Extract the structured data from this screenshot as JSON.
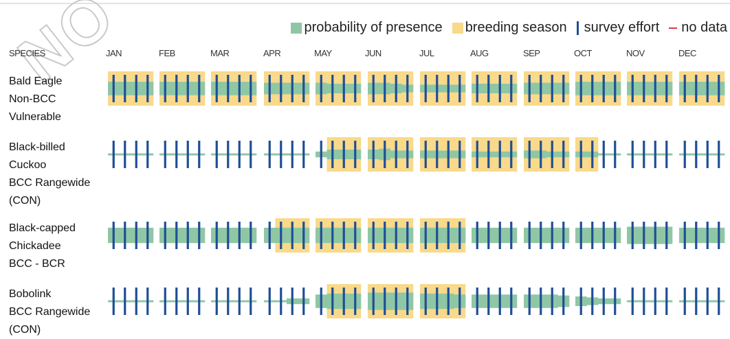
{
  "watermark_text": "NO",
  "legend": {
    "probability_label": "probability of presence",
    "breeding_label": "breeding season",
    "effort_label": "survey effort",
    "nodata_label": "no data"
  },
  "colors": {
    "probability": "#8fc7a4",
    "breeding": "#f9d98a",
    "effort": "#1f4e96",
    "nodata": "#d9384a",
    "baseline": "#8fc7a4"
  },
  "chart_data": {
    "type": "heatmap",
    "species_header": "SPECIES",
    "months": [
      "JAN",
      "FEB",
      "MAR",
      "APR",
      "MAY",
      "JUN",
      "JUL",
      "AUG",
      "SEP",
      "OCT",
      "NOV",
      "DEC"
    ],
    "weeks_per_month": 4,
    "species": [
      {
        "name_lines": [
          "Bald Eagle",
          "Non-BCC",
          "Vulnerable"
        ],
        "breeding": [
          1,
          1,
          1,
          1,
          1,
          1,
          1,
          1,
          1,
          1,
          1,
          1,
          1,
          1,
          1,
          1,
          1,
          1,
          1,
          1,
          1,
          1,
          1,
          1,
          1,
          1,
          1,
          1,
          1,
          1,
          1,
          1,
          1,
          1,
          1,
          1,
          1,
          1,
          1,
          1,
          1,
          1,
          1,
          1,
          1,
          1,
          1,
          1
        ],
        "probability": [
          0.7,
          0.7,
          0.7,
          0.7,
          0.7,
          0.7,
          0.7,
          0.7,
          0.7,
          0.7,
          0.7,
          0.7,
          0.6,
          0.6,
          0.6,
          0.6,
          0.6,
          0.5,
          0.5,
          0.5,
          0.6,
          0.6,
          0.5,
          0.4,
          0.4,
          0.4,
          0.4,
          0.4,
          0.5,
          0.5,
          0.5,
          0.5,
          0.6,
          0.6,
          0.6,
          0.6,
          0.7,
          0.7,
          0.7,
          0.7,
          0.7,
          0.7,
          0.7,
          0.7,
          0.7,
          0.7,
          0.7,
          0.7
        ],
        "effort": [
          1,
          1,
          1,
          1,
          1,
          1,
          1,
          1,
          1,
          1,
          1,
          1,
          1,
          1,
          1,
          1,
          1,
          1,
          1,
          1,
          1,
          1,
          1,
          1,
          1,
          1,
          1,
          1,
          1,
          1,
          1,
          1,
          1,
          1,
          1,
          1,
          1,
          1,
          1,
          1,
          1,
          1,
          1,
          1,
          1,
          1,
          1,
          1
        ]
      },
      {
        "name_lines": [
          "Black-billed",
          "Cuckoo",
          "BCC Rangewide",
          "(CON)"
        ],
        "breeding": [
          0,
          0,
          0,
          0,
          0,
          0,
          0,
          0,
          0,
          0,
          0,
          0,
          0,
          0,
          0,
          0,
          0,
          1,
          1,
          1,
          1,
          1,
          1,
          1,
          1,
          1,
          1,
          1,
          1,
          1,
          1,
          1,
          1,
          1,
          1,
          1,
          1,
          1,
          0,
          0,
          0,
          0,
          0,
          0,
          0,
          0,
          0,
          0
        ],
        "probability": [
          0,
          0,
          0,
          0,
          0,
          0,
          0,
          0,
          0,
          0,
          0,
          0,
          0,
          0,
          0,
          0,
          0.3,
          0.5,
          0.5,
          0.5,
          0.5,
          0.6,
          0.4,
          0.4,
          0.4,
          0.4,
          0.4,
          0.4,
          0.3,
          0.3,
          0.3,
          0.3,
          0.4,
          0.4,
          0.3,
          0.3,
          0.3,
          0.3,
          0,
          0,
          0,
          0,
          0,
          0,
          0,
          0,
          0,
          0
        ],
        "effort": [
          1,
          1,
          1,
          1,
          1,
          1,
          1,
          1,
          1,
          1,
          1,
          1,
          1,
          1,
          1,
          1,
          1,
          1,
          1,
          1,
          1,
          1,
          1,
          1,
          1,
          1,
          1,
          1,
          1,
          1,
          1,
          1,
          1,
          1,
          1,
          1,
          1,
          1,
          1,
          1,
          1,
          1,
          1,
          1,
          1,
          1,
          1,
          1
        ]
      },
      {
        "name_lines": [
          "Black-capped",
          "Chickadee",
          "BCC - BCR"
        ],
        "breeding": [
          0,
          0,
          0,
          0,
          0,
          0,
          0,
          0,
          0,
          0,
          0,
          0,
          0,
          1,
          1,
          1,
          1,
          1,
          1,
          1,
          1,
          1,
          1,
          1,
          1,
          1,
          1,
          1,
          0,
          0,
          0,
          0,
          0,
          0,
          0,
          0,
          0,
          0,
          0,
          0,
          0,
          0,
          0,
          0,
          0,
          0,
          0,
          0
        ],
        "probability": [
          0.8,
          0.8,
          0.8,
          0.8,
          0.8,
          0.8,
          0.8,
          0.8,
          0.8,
          0.8,
          0.8,
          0.8,
          0.8,
          0.8,
          0.8,
          0.8,
          0.8,
          0.8,
          0.8,
          0.8,
          0.8,
          0.8,
          0.8,
          0.8,
          0.8,
          0.8,
          0.8,
          0.8,
          0.8,
          0.8,
          0.8,
          0.8,
          0.8,
          0.8,
          0.8,
          0.8,
          0.8,
          0.8,
          0.8,
          0.8,
          0.9,
          0.9,
          0.9,
          0.9,
          0.8,
          0.8,
          0.8,
          0.8
        ],
        "effort": [
          1,
          1,
          1,
          1,
          1,
          1,
          1,
          1,
          1,
          1,
          1,
          1,
          1,
          1,
          1,
          1,
          1,
          1,
          1,
          1,
          1,
          1,
          1,
          1,
          1,
          1,
          1,
          1,
          1,
          1,
          1,
          1,
          1,
          1,
          1,
          1,
          1,
          1,
          1,
          1,
          1,
          1,
          1,
          1,
          1,
          1,
          1,
          1
        ]
      },
      {
        "name_lines": [
          "Bobolink",
          "BCC Rangewide",
          "(CON)"
        ],
        "breeding": [
          0,
          0,
          0,
          0,
          0,
          0,
          0,
          0,
          0,
          0,
          0,
          0,
          0,
          0,
          0,
          0,
          0,
          1,
          1,
          1,
          1,
          1,
          1,
          1,
          1,
          1,
          1,
          1,
          0,
          0,
          0,
          0,
          0,
          0,
          0,
          0,
          0,
          0,
          0,
          0,
          0,
          0,
          0,
          0,
          0,
          0,
          0,
          0
        ],
        "probability": [
          0,
          0,
          0,
          0,
          0,
          0,
          0,
          0,
          0,
          0,
          0,
          0,
          0,
          0.1,
          0.3,
          0.3,
          0.7,
          0.8,
          0.8,
          0.8,
          0.9,
          0.9,
          0.9,
          0.9,
          0.8,
          0.8,
          0.8,
          0.7,
          0.7,
          0.7,
          0.7,
          0.7,
          0.7,
          0.7,
          0.7,
          0.6,
          0.5,
          0.4,
          0.3,
          0.3,
          0,
          0,
          0,
          0,
          0,
          0,
          0,
          0
        ],
        "effort": [
          1,
          1,
          1,
          1,
          1,
          1,
          1,
          1,
          1,
          1,
          1,
          1,
          1,
          1,
          1,
          1,
          1,
          1,
          1,
          1,
          1,
          1,
          1,
          1,
          1,
          1,
          1,
          1,
          1,
          1,
          1,
          1,
          1,
          1,
          1,
          1,
          1,
          1,
          1,
          1,
          1,
          1,
          1,
          1,
          1,
          1,
          1,
          1
        ]
      }
    ]
  }
}
